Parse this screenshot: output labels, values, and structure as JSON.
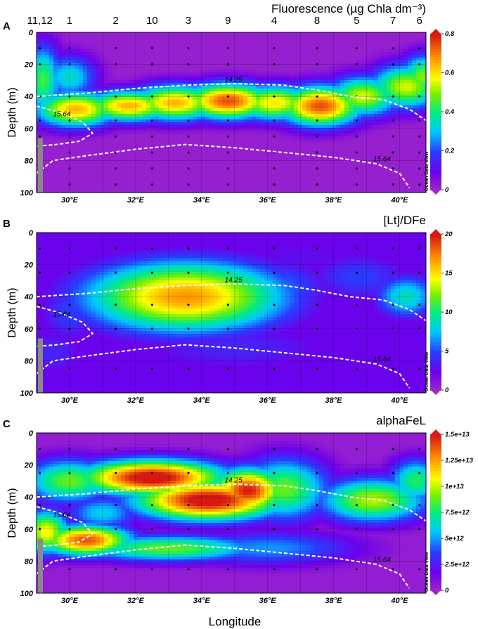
{
  "figure": {
    "xlabel": "Longitude",
    "station_labels": [
      {
        "label": "11,12",
        "lon": 29.1,
        "gray": false
      },
      {
        "label": "1",
        "lon": 30.0,
        "gray": false
      },
      {
        "label": "2",
        "lon": 31.4,
        "gray": false
      },
      {
        "label": "10",
        "lon": 32.5,
        "gray": true
      },
      {
        "label": "3",
        "lon": 33.6,
        "gray": false
      },
      {
        "label": "9",
        "lon": 34.8,
        "gray": true
      },
      {
        "label": "4",
        "lon": 36.2,
        "gray": false
      },
      {
        "label": "8",
        "lon": 37.5,
        "gray": true
      },
      {
        "label": "5",
        "lon": 38.7,
        "gray": false
      },
      {
        "label": "7",
        "lon": 39.8,
        "gray": true
      },
      {
        "label": "6",
        "lon": 40.6,
        "gray": false
      }
    ],
    "watermark": "Ocean Data View"
  },
  "chart_data": [
    {
      "panel": "A",
      "type": "heatmap",
      "title": "Fluorescence (µg Chla dm⁻³)",
      "ylabel": "Depth (m)",
      "xlim": [
        29.0,
        40.8
      ],
      "ylim": [
        0,
        100
      ],
      "xticks": [
        "30°E",
        "32°E",
        "34°E",
        "36°E",
        "38°E",
        "40°E"
      ],
      "yticks": [
        "0",
        "20",
        "40",
        "60",
        "80",
        "100"
      ],
      "colorbar": {
        "min": 0,
        "max": 0.8,
        "ticks": [
          "0",
          "0.2",
          "0.4",
          "0.6",
          "0.8"
        ]
      },
      "background_value": 0.02,
      "features": [
        {
          "lon": 30.0,
          "depth": 28,
          "value": 0.35,
          "sx": 0.6,
          "sy": 10
        },
        {
          "lon": 29.2,
          "depth": 30,
          "value": 0.45,
          "sx": 0.4,
          "sy": 16
        },
        {
          "lon": 30.2,
          "depth": 48,
          "value": 0.65,
          "sx": 0.9,
          "sy": 8
        },
        {
          "lon": 31.8,
          "depth": 46,
          "value": 0.65,
          "sx": 1.0,
          "sy": 7
        },
        {
          "lon": 33.2,
          "depth": 44,
          "value": 0.65,
          "sx": 1.0,
          "sy": 8
        },
        {
          "lon": 34.8,
          "depth": 43,
          "value": 0.75,
          "sx": 1.0,
          "sy": 8
        },
        {
          "lon": 36.2,
          "depth": 44,
          "value": 0.6,
          "sx": 0.9,
          "sy": 8
        },
        {
          "lon": 37.6,
          "depth": 46,
          "value": 0.75,
          "sx": 0.9,
          "sy": 9
        },
        {
          "lon": 38.9,
          "depth": 40,
          "value": 0.55,
          "sx": 0.8,
          "sy": 9
        },
        {
          "lon": 40.2,
          "depth": 34,
          "value": 0.55,
          "sx": 0.8,
          "sy": 10
        },
        {
          "lon": 40.7,
          "depth": 28,
          "value": 0.5,
          "sx": 0.5,
          "sy": 10
        }
      ],
      "contours": [
        {
          "label": "14.25",
          "label_lon": 34.7,
          "points": [
            [
              29,
              40
            ],
            [
              30.5,
              38
            ],
            [
              32,
              35
            ],
            [
              33.5,
              33
            ],
            [
              35,
              32
            ],
            [
              36.5,
              33
            ],
            [
              37.5,
              36
            ],
            [
              38.5,
              40
            ],
            [
              39.5,
              42
            ],
            [
              40.3,
              48
            ],
            [
              40.8,
              55
            ]
          ]
        },
        {
          "label": "15.64",
          "label_lon": 29.5,
          "points": [
            [
              29,
              46
            ],
            [
              29.7,
              50
            ],
            [
              30.4,
              56
            ],
            [
              30.7,
              63
            ],
            [
              30.3,
              68
            ],
            [
              29.6,
              70
            ],
            [
              29,
              71
            ]
          ]
        },
        {
          "label": "15.64",
          "label_lon": 39.2,
          "points": [
            [
              29,
              88
            ],
            [
              29.5,
              80
            ],
            [
              30.5,
              77
            ],
            [
              32,
              73
            ],
            [
              33.5,
              70
            ],
            [
              35,
              72
            ],
            [
              36.5,
              75
            ],
            [
              38,
              78
            ],
            [
              39.3,
              82
            ],
            [
              40,
              88
            ],
            [
              40.3,
              97
            ]
          ]
        }
      ],
      "sample_depths": [
        10,
        20,
        40,
        55,
        65,
        75,
        85,
        95
      ]
    },
    {
      "panel": "B",
      "type": "heatmap",
      "title": "[Lt]/DFe",
      "ylabel": "Depth (m)",
      "xlim": [
        29.0,
        40.8
      ],
      "ylim": [
        0,
        100
      ],
      "xticks": [
        "30°E",
        "32°E",
        "34°E",
        "36°E",
        "38°E",
        "40°E"
      ],
      "yticks": [
        "0",
        "20",
        "40",
        "60",
        "80",
        "100"
      ],
      "colorbar": {
        "min": 0,
        "max": 20,
        "ticks": [
          "0",
          "5",
          "10",
          "15",
          "20"
        ]
      },
      "background_value": 2.5,
      "features": [
        {
          "lon": 33.5,
          "depth": 40,
          "value": 17,
          "sx": 2.2,
          "sy": 16
        },
        {
          "lon": 31.3,
          "depth": 45,
          "value": 8,
          "sx": 1.0,
          "sy": 12
        },
        {
          "lon": 30.0,
          "depth": 50,
          "value": 5,
          "sx": 0.7,
          "sy": 14
        },
        {
          "lon": 36.3,
          "depth": 35,
          "value": 6,
          "sx": 1.2,
          "sy": 14
        },
        {
          "lon": 38.8,
          "depth": 28,
          "value": 5,
          "sx": 1.2,
          "sy": 12
        },
        {
          "lon": 40.2,
          "depth": 40,
          "value": 9,
          "sx": 0.7,
          "sy": 10
        },
        {
          "lon": 35.0,
          "depth": 72,
          "value": 4,
          "sx": 2.5,
          "sy": 12
        },
        {
          "lon": 29.5,
          "depth": 75,
          "value": 4,
          "sx": 0.8,
          "sy": 12
        },
        {
          "lon": 37.0,
          "depth": 15,
          "value": 3,
          "sx": 2.0,
          "sy": 10
        }
      ],
      "contours": [
        {
          "label": "14.25",
          "label_lon": 34.7,
          "points": [
            [
              29,
              40
            ],
            [
              30.5,
              38
            ],
            [
              32,
              35
            ],
            [
              33.5,
              33
            ],
            [
              35,
              32
            ],
            [
              36.5,
              33
            ],
            [
              37.5,
              36
            ],
            [
              38.5,
              40
            ],
            [
              39.5,
              42
            ],
            [
              40.3,
              48
            ],
            [
              40.8,
              55
            ]
          ]
        },
        {
          "label": "15.64",
          "label_lon": 29.5,
          "points": [
            [
              29,
              46
            ],
            [
              29.7,
              50
            ],
            [
              30.4,
              56
            ],
            [
              30.7,
              63
            ],
            [
              30.3,
              68
            ],
            [
              29.6,
              70
            ],
            [
              29,
              71
            ]
          ]
        },
        {
          "label": "15.64",
          "label_lon": 39.2,
          "points": [
            [
              29,
              88
            ],
            [
              29.5,
              80
            ],
            [
              30.5,
              77
            ],
            [
              32,
              73
            ],
            [
              33.5,
              70
            ],
            [
              35,
              72
            ],
            [
              36.5,
              75
            ],
            [
              38,
              78
            ],
            [
              39.3,
              82
            ],
            [
              40,
              88
            ],
            [
              40.3,
              97
            ]
          ]
        }
      ],
      "sample_depths": [
        10,
        25,
        45,
        60,
        85
      ]
    },
    {
      "panel": "C",
      "type": "heatmap",
      "title": "alphaFeL",
      "ylabel": "Depth (m)",
      "xlim": [
        29.0,
        40.8
      ],
      "ylim": [
        0,
        100
      ],
      "xticks": [
        "30°E",
        "32°E",
        "34°E",
        "36°E",
        "38°E",
        "40°E"
      ],
      "yticks": [
        "0",
        "20",
        "40",
        "60",
        "80",
        "100"
      ],
      "colorbar": {
        "min": 0,
        "max": 15000000000000.0,
        "ticks": [
          "0",
          "2.5e+12",
          "5e+12",
          "7.5e+12",
          "1e+13",
          "1.25e+13",
          "1.5e+13"
        ]
      },
      "background_value": 500000000000.0,
      "features": [
        {
          "lon": 32.5,
          "depth": 28,
          "value": 16000000000000.0,
          "sx": 1.6,
          "sy": 8
        },
        {
          "lon": 34.2,
          "depth": 42,
          "value": 16000000000000.0,
          "sx": 1.6,
          "sy": 9
        },
        {
          "lon": 35.4,
          "depth": 36,
          "value": 15000000000000.0,
          "sx": 0.8,
          "sy": 10
        },
        {
          "lon": 30.5,
          "depth": 67,
          "value": 14000000000000.0,
          "sx": 1.0,
          "sy": 7
        },
        {
          "lon": 29.3,
          "depth": 62,
          "value": 11000000000000.0,
          "sx": 0.5,
          "sy": 10
        },
        {
          "lon": 30.0,
          "depth": 30,
          "value": 9000000000000.0,
          "sx": 1.0,
          "sy": 10
        },
        {
          "lon": 31.0,
          "depth": 50,
          "value": 6000000000000.0,
          "sx": 0.8,
          "sy": 8
        },
        {
          "lon": 36.5,
          "depth": 35,
          "value": 9000000000000.0,
          "sx": 1.0,
          "sy": 14
        },
        {
          "lon": 39.2,
          "depth": 42,
          "value": 10000000000000.0,
          "sx": 1.2,
          "sy": 10
        },
        {
          "lon": 40.5,
          "depth": 30,
          "value": 8000000000000.0,
          "sx": 0.6,
          "sy": 10
        },
        {
          "lon": 33.0,
          "depth": 72,
          "value": 9000000000000.0,
          "sx": 2.0,
          "sy": 6
        },
        {
          "lon": 36.0,
          "depth": 72,
          "value": 5000000000000.0,
          "sx": 2.0,
          "sy": 8
        }
      ],
      "contours": [
        {
          "label": "14.25",
          "label_lon": 34.7,
          "points": [
            [
              29,
              40
            ],
            [
              30.5,
              38
            ],
            [
              32,
              35
            ],
            [
              33.5,
              33
            ],
            [
              35,
              32
            ],
            [
              36.5,
              33
            ],
            [
              37.5,
              36
            ],
            [
              38.5,
              40
            ],
            [
              39.5,
              42
            ],
            [
              40.3,
              48
            ],
            [
              40.8,
              55
            ]
          ]
        },
        {
          "label": "15.64",
          "label_lon": 29.5,
          "points": [
            [
              29,
              46
            ],
            [
              29.7,
              50
            ],
            [
              30.4,
              56
            ],
            [
              30.7,
              63
            ],
            [
              30.3,
              68
            ],
            [
              29.6,
              70
            ],
            [
              29,
              71
            ]
          ]
        },
        {
          "label": "15.64",
          "label_lon": 39.2,
          "points": [
            [
              29,
              88
            ],
            [
              29.5,
              80
            ],
            [
              30.5,
              77
            ],
            [
              32,
              73
            ],
            [
              33.5,
              70
            ],
            [
              35,
              72
            ],
            [
              36.5,
              75
            ],
            [
              38,
              78
            ],
            [
              39.3,
              82
            ],
            [
              40,
              88
            ],
            [
              40.3,
              97
            ]
          ]
        }
      ],
      "sample_depths": [
        10,
        25,
        45,
        60,
        85
      ]
    }
  ]
}
